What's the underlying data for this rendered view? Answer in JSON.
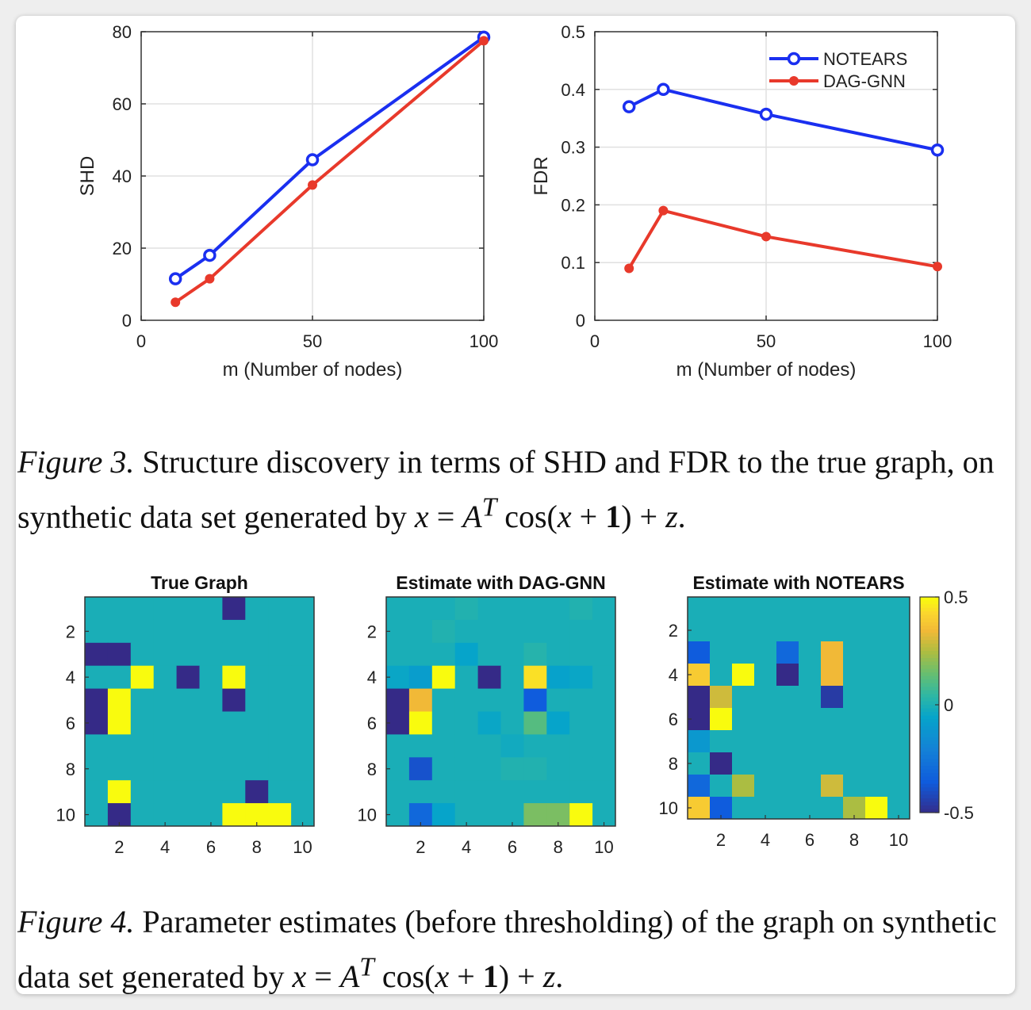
{
  "figure3": {
    "caption_label": "Figure 3.",
    "caption_text": " Structure discovery in terms of SHD and FDR to the true graph, on synthetic data set generated by ",
    "caption_eq": {
      "lhs": "x",
      "eq": " = ",
      "mat": "A",
      "sup": "T",
      "fn": " cos(",
      "arg": "x",
      "plus": " + ",
      "one": "1",
      "close": ") + ",
      "z": "z",
      "end": "."
    }
  },
  "figure4": {
    "caption_label": "Figure 4.",
    "caption_text": " Parameter estimates (before thresholding) of the graph on synthetic data set generated by ",
    "caption_eq": {
      "lhs": "x",
      "eq": " = ",
      "mat": "A",
      "sup": "T",
      "fn": " cos(",
      "arg": "x",
      "plus": " + ",
      "one": "1",
      "close": ") + ",
      "z": "z",
      "end": "."
    }
  },
  "colors": {
    "notears": "#1a2ff0",
    "daggnn": "#e8392b",
    "grid": "#e0e0e0"
  },
  "chart_data": [
    {
      "type": "line",
      "title": "",
      "xlabel": "m (Number of nodes)",
      "ylabel": "SHD",
      "xlim": [
        0,
        100
      ],
      "ylim": [
        0,
        80
      ],
      "xticks": [
        0,
        50,
        100
      ],
      "yticks": [
        0,
        20,
        40,
        60,
        80
      ],
      "grid": true,
      "legend": "none",
      "x": [
        10,
        20,
        50,
        100
      ],
      "series": [
        {
          "name": "NOTEARS",
          "values": [
            11.5,
            18,
            44.5,
            78.5
          ],
          "color": "#1a2ff0",
          "marker": "open-circle"
        },
        {
          "name": "DAG-GNN",
          "values": [
            5,
            11.5,
            37.5,
            77.5
          ],
          "color": "#e8392b",
          "marker": "filled-dot"
        }
      ]
    },
    {
      "type": "line",
      "title": "",
      "xlabel": "m (Number of nodes)",
      "ylabel": "FDR",
      "xlim": [
        0,
        100
      ],
      "ylim": [
        0,
        0.5
      ],
      "xticks": [
        0,
        50,
        100
      ],
      "yticks": [
        0,
        0.1,
        0.2,
        0.3,
        0.4,
        0.5
      ],
      "grid": true,
      "legend": "top-right",
      "x": [
        10,
        20,
        50,
        100
      ],
      "series": [
        {
          "name": "NOTEARS",
          "values": [
            0.37,
            0.4,
            0.357,
            0.295
          ],
          "color": "#1a2ff0",
          "marker": "open-circle"
        },
        {
          "name": "DAG-GNN",
          "values": [
            0.09,
            0.19,
            0.145,
            0.093
          ],
          "color": "#e8392b",
          "marker": "filled-dot"
        }
      ]
    },
    {
      "type": "heatmap",
      "title": "True Graph",
      "xticks": [
        2,
        4,
        6,
        8,
        10
      ],
      "yticks": [
        2,
        4,
        6,
        8,
        10
      ],
      "grid": false,
      "legend": "none",
      "values": [
        [
          0,
          0,
          0,
          0,
          0,
          0,
          -0.5,
          0,
          0,
          0
        ],
        [
          0,
          0,
          0,
          0,
          0,
          0,
          0,
          0,
          0,
          0
        ],
        [
          -0.5,
          -0.5,
          0,
          0,
          0,
          0,
          0,
          0,
          0,
          0
        ],
        [
          0,
          0,
          0.5,
          0,
          -0.5,
          0,
          0.5,
          0,
          0,
          0
        ],
        [
          -0.5,
          0.5,
          0,
          0,
          0,
          0,
          -0.5,
          0,
          0,
          0
        ],
        [
          -0.5,
          0.5,
          0,
          0,
          0,
          0,
          0,
          0,
          0,
          0
        ],
        [
          0,
          0,
          0,
          0,
          0,
          0,
          0,
          0,
          0,
          0
        ],
        [
          0,
          0,
          0,
          0,
          0,
          0,
          0,
          0,
          0,
          0
        ],
        [
          0,
          0.5,
          0,
          0,
          0,
          0,
          0,
          -0.5,
          0,
          0
        ],
        [
          0,
          -0.5,
          0,
          0,
          0,
          0,
          0.5,
          0.5,
          0.5,
          0
        ]
      ]
    },
    {
      "type": "heatmap",
      "title": "Estimate with DAG-GNN",
      "xticks": [
        2,
        4,
        6,
        8,
        10
      ],
      "yticks": [
        2,
        4,
        6,
        8,
        10
      ],
      "grid": false,
      "legend": "none",
      "values": [
        [
          0,
          0,
          0,
          0.02,
          0,
          0,
          0,
          0,
          0.02,
          0
        ],
        [
          0,
          0,
          0.02,
          0,
          0,
          0,
          0,
          0,
          0,
          0
        ],
        [
          0,
          0,
          0,
          -0.05,
          0,
          0,
          0.03,
          0,
          0,
          0
        ],
        [
          -0.04,
          -0.08,
          0.5,
          0,
          -0.5,
          0,
          0.45,
          -0.06,
          -0.04,
          0
        ],
        [
          -0.5,
          0.35,
          0,
          0,
          0,
          0,
          -0.35,
          0,
          0,
          0
        ],
        [
          -0.5,
          0.5,
          0,
          0,
          -0.04,
          0,
          0.12,
          -0.05,
          0,
          0
        ],
        [
          0,
          0,
          0,
          0,
          0,
          -0.02,
          0,
          0,
          0,
          0
        ],
        [
          0,
          -0.38,
          0,
          0,
          0,
          0.02,
          0.02,
          0,
          0,
          0
        ],
        [
          0,
          0,
          0,
          0,
          0,
          0,
          0,
          0,
          0,
          0
        ],
        [
          0,
          -0.3,
          -0.05,
          0,
          0,
          0,
          0.18,
          0.18,
          0.5,
          0
        ]
      ]
    },
    {
      "type": "heatmap",
      "title": "Estimate with NOTEARS",
      "xticks": [
        2,
        4,
        6,
        8,
        10
      ],
      "yticks": [
        2,
        4,
        6,
        8,
        10
      ],
      "zlim": [
        -0.5,
        0.5
      ],
      "colorbar_ticks": [
        "0.5",
        "0",
        "-0.5"
      ],
      "grid": false,
      "legend": "colorbar right",
      "values": [
        [
          0,
          0,
          0,
          0,
          0,
          0,
          0,
          0,
          0,
          0
        ],
        [
          0,
          0,
          0,
          0,
          0,
          0,
          0,
          0,
          0,
          0
        ],
        [
          -0.35,
          0,
          0,
          0,
          -0.3,
          0,
          0.35,
          0,
          0,
          0
        ],
        [
          0.4,
          0,
          0.5,
          0,
          -0.5,
          0,
          0.35,
          0,
          0,
          0
        ],
        [
          -0.5,
          0.3,
          0,
          0,
          0,
          0,
          -0.45,
          0,
          0,
          0
        ],
        [
          -0.5,
          0.5,
          0,
          0,
          0,
          0,
          0,
          0,
          0,
          0
        ],
        [
          -0.1,
          0,
          0,
          0,
          0,
          0,
          0,
          0,
          0,
          0
        ],
        [
          0,
          -0.5,
          0,
          0,
          0,
          0,
          0,
          0,
          0,
          0
        ],
        [
          -0.3,
          0,
          0.25,
          0,
          0,
          0,
          0.3,
          0,
          0,
          0
        ],
        [
          0.4,
          -0.35,
          0,
          0,
          0,
          0,
          0,
          0.25,
          0.5,
          0
        ]
      ]
    }
  ]
}
